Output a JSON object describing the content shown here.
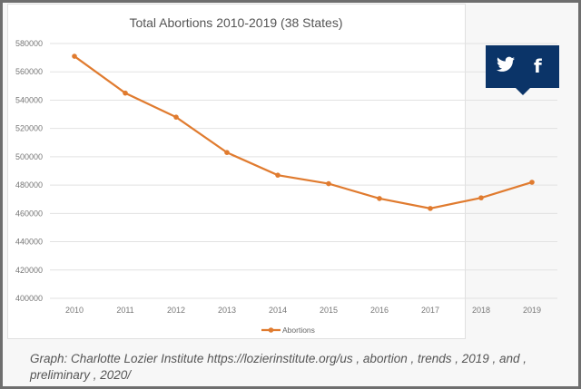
{
  "chart_data": {
    "type": "line",
    "title": "Total Abortions 2010-2019 (38 States)",
    "xlabel": "",
    "ylabel": "",
    "categories": [
      "2010",
      "2011",
      "2012",
      "2013",
      "2014",
      "2015",
      "2016",
      "2017",
      "2018",
      "2019"
    ],
    "series": [
      {
        "name": "Abortions",
        "values": [
          571000,
          545000,
          528000,
          503000,
          487000,
          481000,
          470500,
          463500,
          471000,
          482000
        ],
        "color": "#e07b2f"
      }
    ],
    "ylim": [
      400000,
      580000
    ],
    "yticks": [
      "400000",
      "420000",
      "440000",
      "460000",
      "480000",
      "500000",
      "520000",
      "540000",
      "560000",
      "580000"
    ],
    "grid": true,
    "legend": "bottom"
  },
  "caption": "Graph: Charlotte Lozier Institute https://lozierinstitute.org/us , abortion , trends , 2019 , and , preliminary , 2020/",
  "share": {
    "color": "#0b3468",
    "icons": [
      "twitter-icon",
      "facebook-icon"
    ],
    "twitter_glyph": "🐦",
    "facebook_glyph": "f"
  }
}
